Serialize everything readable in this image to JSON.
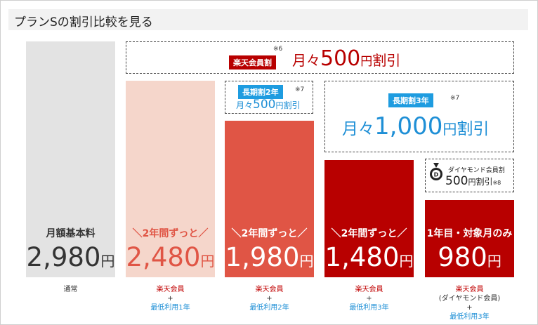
{
  "title": "プランSの割引比較を見る",
  "colors": {
    "gray": "#e3e3e3",
    "pink": "#f5d6cb",
    "coral": "#e05545",
    "red": "#b80000",
    "blue": "#1e9ce0",
    "text_red": "#c00000",
    "text_blue": "#1e8fd6"
  },
  "chart_data": {
    "type": "bar",
    "categories": [
      "通常",
      "楽天会員+最低利用1年",
      "楽天会員+最低利用2年",
      "楽天会員+最低利用3年",
      "楽天会員(ダイヤモンド会員)+最低利用3年"
    ],
    "values": [
      2980,
      2480,
      1980,
      1480,
      980
    ],
    "unit": "円",
    "bars": [
      {
        "tag": "月額基本料",
        "num": "2,980",
        "yen": "円",
        "cap": [
          "通常"
        ]
      },
      {
        "tag": "＼2年間ずっと／",
        "num": "2,480",
        "yen": "円",
        "cap": [
          "楽天会員",
          "+",
          "最低利用1年"
        ]
      },
      {
        "tag": "＼2年間ずっと／",
        "num": "1,980",
        "yen": "円",
        "cap": [
          "楽天会員",
          "+",
          "最低利用2年"
        ]
      },
      {
        "tag": "＼2年間ずっと／",
        "num": "1,480",
        "yen": "円",
        "cap": [
          "楽天会員",
          "+",
          "最低利用3年"
        ]
      },
      {
        "tag": "1年目・対象月のみ",
        "num": "980",
        "yen": "円",
        "cap": [
          "楽天会員",
          "(ダイヤモンド会員)",
          "+",
          "最低利用3年"
        ]
      }
    ],
    "discounts": {
      "rakuten": {
        "badge": "楽天会員割",
        "note": "※6",
        "prefix": "月々",
        "amount": "500",
        "suffix_yen": "円",
        "suffix": "割引"
      },
      "long2": {
        "badge": "長期割2年",
        "note": "※7",
        "prefix": "月々",
        "amount": "500",
        "suffix_yen": "円",
        "suffix": "割引"
      },
      "long3": {
        "badge": "長期割3年",
        "note": "※7",
        "prefix": "月々",
        "amount": "1,000",
        "suffix_yen": "円",
        "suffix": "割引"
      },
      "diamond": {
        "badge": "ダイヤモンド会員割",
        "amount": "500",
        "suffix_yen": "円",
        "suffix": "割引",
        "note": "※8"
      }
    }
  }
}
